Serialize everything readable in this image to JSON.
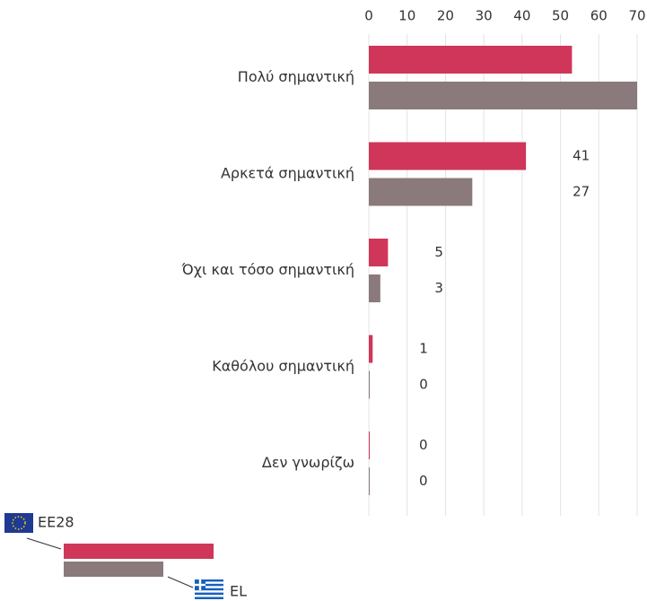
{
  "chart_data": {
    "type": "bar",
    "orientation": "horizontal",
    "categories": [
      "Πολύ σημαντική",
      "Αρκετά σημαντική",
      "Όχι και τόσο σημαντική",
      "Καθόλου σημαντική",
      "Δεν γνωρίζω"
    ],
    "series": [
      {
        "name": "EE28",
        "color": "#d0365a",
        "values": [
          53,
          41,
          5,
          1,
          0
        ]
      },
      {
        "name": "EL",
        "color": "#8a7a7b",
        "values": [
          70,
          27,
          3,
          0,
          0
        ]
      }
    ],
    "xlim": [
      0,
      70
    ],
    "xticks": [
      0,
      10,
      20,
      30,
      40,
      50,
      60,
      70
    ],
    "grid": true
  }
}
